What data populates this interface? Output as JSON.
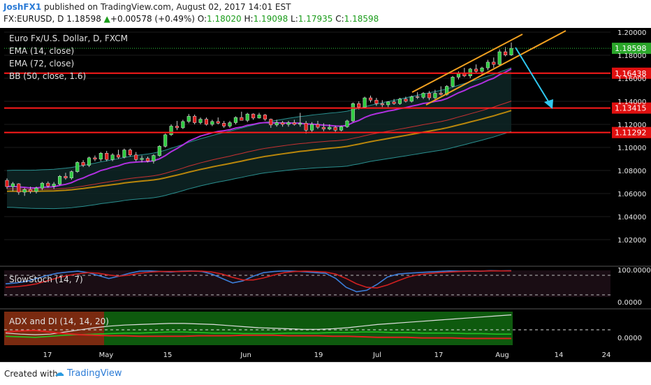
{
  "header": {
    "author": "JoshFX1",
    "published": "published on TradingView.com, August 02, 2017 14:01 EST",
    "symbol_line_prefix": "FX:EURUSD, D",
    "last_price": "1.18598",
    "change_arrow": "▲",
    "change": "+0.00578 (+0.49%)",
    "o_label": "O:",
    "o_value": "1.18020",
    "h_label": "H:",
    "h_value": "1.19098",
    "l_label": "L:",
    "l_value": "1.17935",
    "c_label": "C:",
    "c_value": "1.18598"
  },
  "footer": {
    "created_with": "Created with",
    "brand": "TradingView"
  },
  "colors": {
    "background": "#000000",
    "bull": "#2ecc40",
    "bear": "#e02020",
    "ema14": "#b030e0",
    "ema72": "#b8860b",
    "bb_basis": "#c83232",
    "bb_band": "#2a8f8f",
    "hline": "#ff1a1a",
    "channel": "#f0a020",
    "arrow": "#30c8f0",
    "stoch_k": "#3b7dd8",
    "stoch_d": "#d02020",
    "adx": "#dddddd",
    "di_plus": "#22c322",
    "di_minus": "#e02020"
  },
  "chart_data": {
    "type": "candlestick",
    "title": "Euro Fx/U.S. Dollar, D, FXCM",
    "legend": [
      "EMA (14, close)",
      "EMA (72, close)",
      "BB (50, close, 1.6)"
    ],
    "x_ticks": [
      "17",
      "May",
      "15",
      "Jun",
      "19",
      "Jul",
      "17",
      "Aug",
      "14",
      "24"
    ],
    "y_ticks": [
      "1.20000",
      "1.18000",
      "1.16000",
      "1.14000",
      "1.12000",
      "1.10000",
      "1.08000",
      "1.06000",
      "1.04000",
      "1.02000"
    ],
    "ylim": [
      1.0,
      1.2
    ],
    "horizontal_levels": [
      {
        "label": "1.16438",
        "value": 1.16438
      },
      {
        "label": "1.13415",
        "value": 1.13415
      },
      {
        "label": "1.11292",
        "value": 1.11292
      }
    ],
    "current_price": {
      "label": "1.18598",
      "value": 1.18598
    },
    "candles": [
      [
        1.0715,
        1.0732,
        1.064,
        1.066
      ],
      [
        1.066,
        1.07,
        1.062,
        1.0685
      ],
      [
        1.0685,
        1.069,
        1.059,
        1.0612
      ],
      [
        1.0612,
        1.065,
        1.058,
        1.0635
      ],
      [
        1.0635,
        1.066,
        1.06,
        1.0618
      ],
      [
        1.0618,
        1.066,
        1.06,
        1.0648
      ],
      [
        1.0648,
        1.07,
        1.063,
        1.069
      ],
      [
        1.069,
        1.0705,
        1.065,
        1.0665
      ],
      [
        1.0665,
        1.07,
        1.064,
        1.0682
      ],
      [
        1.0682,
        1.076,
        1.067,
        1.075
      ],
      [
        1.075,
        1.078,
        1.072,
        1.0735
      ],
      [
        1.0735,
        1.08,
        1.072,
        1.079
      ],
      [
        1.079,
        1.088,
        1.078,
        1.087
      ],
      [
        1.087,
        1.089,
        1.083,
        1.0845
      ],
      [
        1.0845,
        1.092,
        1.083,
        1.091
      ],
      [
        1.091,
        1.093,
        1.088,
        1.0898
      ],
      [
        1.0898,
        1.096,
        1.088,
        1.095
      ],
      [
        1.095,
        1.097,
        1.088,
        1.0895
      ],
      [
        1.0895,
        1.095,
        1.088,
        1.0935
      ],
      [
        1.0935,
        1.098,
        1.09,
        1.0915
      ],
      [
        1.0915,
        1.099,
        1.0905,
        1.0978
      ],
      [
        1.0978,
        1.099,
        1.092,
        1.0935
      ],
      [
        1.0935,
        1.096,
        1.088,
        1.0895
      ],
      [
        1.0895,
        1.093,
        1.087,
        1.0905
      ],
      [
        1.0905,
        1.092,
        1.087,
        1.0882
      ],
      [
        1.0882,
        1.094,
        1.086,
        1.093
      ],
      [
        1.093,
        1.102,
        1.092,
        1.101
      ],
      [
        1.101,
        1.112,
        1.1,
        1.111
      ],
      [
        1.111,
        1.12,
        1.11,
        1.1185
      ],
      [
        1.1185,
        1.123,
        1.115,
        1.117
      ],
      [
        1.117,
        1.124,
        1.116,
        1.1225
      ],
      [
        1.1225,
        1.129,
        1.121,
        1.127
      ],
      [
        1.127,
        1.1285,
        1.12,
        1.1215
      ],
      [
        1.1215,
        1.126,
        1.12,
        1.1245
      ],
      [
        1.1245,
        1.126,
        1.119,
        1.12
      ],
      [
        1.12,
        1.124,
        1.1185,
        1.1225
      ],
      [
        1.1225,
        1.126,
        1.12,
        1.121
      ],
      [
        1.121,
        1.123,
        1.117,
        1.1185
      ],
      [
        1.1185,
        1.123,
        1.117,
        1.1215
      ],
      [
        1.1215,
        1.127,
        1.12,
        1.126
      ],
      [
        1.126,
        1.131,
        1.124,
        1.1235
      ],
      [
        1.1235,
        1.13,
        1.122,
        1.129
      ],
      [
        1.129,
        1.1296,
        1.124,
        1.1255
      ],
      [
        1.1255,
        1.13,
        1.125,
        1.1282
      ],
      [
        1.1282,
        1.129,
        1.123,
        1.1245
      ],
      [
        1.1245,
        1.125,
        1.117,
        1.1195
      ],
      [
        1.1195,
        1.124,
        1.118,
        1.1215
      ],
      [
        1.1215,
        1.123,
        1.118,
        1.12
      ],
      [
        1.12,
        1.123,
        1.118,
        1.1215
      ],
      [
        1.1215,
        1.124,
        1.119,
        1.12
      ],
      [
        1.12,
        1.13,
        1.118,
        1.121
      ],
      [
        1.121,
        1.123,
        1.112,
        1.115
      ],
      [
        1.115,
        1.122,
        1.113,
        1.12
      ],
      [
        1.12,
        1.123,
        1.116,
        1.1175
      ],
      [
        1.1175,
        1.121,
        1.114,
        1.116
      ],
      [
        1.116,
        1.12,
        1.115,
        1.1175
      ],
      [
        1.1175,
        1.119,
        1.113,
        1.115
      ],
      [
        1.115,
        1.119,
        1.114,
        1.118
      ],
      [
        1.118,
        1.124,
        1.117,
        1.123
      ],
      [
        1.123,
        1.139,
        1.122,
        1.138
      ],
      [
        1.138,
        1.14,
        1.133,
        1.135
      ],
      [
        1.135,
        1.144,
        1.134,
        1.143
      ],
      [
        1.143,
        1.145,
        1.139,
        1.141
      ],
      [
        1.141,
        1.143,
        1.136,
        1.138
      ],
      [
        1.138,
        1.141,
        1.135,
        1.137
      ],
      [
        1.137,
        1.14,
        1.135,
        1.1395
      ],
      [
        1.1395,
        1.142,
        1.137,
        1.138
      ],
      [
        1.138,
        1.143,
        1.137,
        1.142
      ],
      [
        1.142,
        1.144,
        1.139,
        1.14
      ],
      [
        1.14,
        1.145,
        1.139,
        1.144
      ],
      [
        1.144,
        1.148,
        1.142,
        1.1435
      ],
      [
        1.1435,
        1.148,
        1.142,
        1.147
      ],
      [
        1.147,
        1.149,
        1.141,
        1.143
      ],
      [
        1.143,
        1.15,
        1.142,
        1.147
      ],
      [
        1.147,
        1.153,
        1.145,
        1.146
      ],
      [
        1.146,
        1.154,
        1.145,
        1.153
      ],
      [
        1.153,
        1.162,
        1.152,
        1.161
      ],
      [
        1.161,
        1.166,
        1.159,
        1.164
      ],
      [
        1.164,
        1.169,
        1.161,
        1.162
      ],
      [
        1.162,
        1.169,
        1.16,
        1.168
      ],
      [
        1.168,
        1.172,
        1.164,
        1.166
      ],
      [
        1.166,
        1.17,
        1.163,
        1.169
      ],
      [
        1.169,
        1.176,
        1.167,
        1.174
      ],
      [
        1.174,
        1.178,
        1.169,
        1.172
      ],
      [
        1.172,
        1.185,
        1.171,
        1.183
      ],
      [
        1.183,
        1.187,
        1.179,
        1.1802
      ],
      [
        1.1802,
        1.191,
        1.1794,
        1.18598
      ]
    ],
    "ema14_end": 1.168,
    "ema72_end": 1.131,
    "bb_upper_end": 1.178,
    "bb_basis_end": 1.138,
    "bb_lower_end": 1.106,
    "stochastic": {
      "label": "SlowStoch (14, 7)",
      "y_ticks": [
        "100.0000",
        "0.0000"
      ],
      "ylim": [
        0,
        100
      ],
      "k": [
        52,
        55,
        60,
        70,
        80,
        88,
        92,
        95,
        90,
        80,
        70,
        78,
        88,
        95,
        96,
        94,
        92,
        95,
        96,
        94,
        85,
        70,
        55,
        62,
        78,
        90,
        94,
        96,
        95,
        93,
        90,
        88,
        70,
        40,
        25,
        30,
        50,
        75,
        85,
        88,
        90,
        92,
        94,
        96,
        95,
        96,
        95,
        97,
        96,
        97
      ],
      "d": [
        40,
        42,
        46,
        52,
        62,
        72,
        80,
        86,
        90,
        88,
        82,
        78,
        82,
        88,
        92,
        94,
        94,
        94,
        95,
        95,
        92,
        85,
        74,
        65,
        65,
        72,
        82,
        90,
        94,
        95,
        94,
        92,
        85,
        70,
        52,
        40,
        38,
        48,
        62,
        75,
        83,
        87,
        90,
        92,
        94,
        95,
        95,
        96,
        96,
        96
      ]
    },
    "adx_di": {
      "label": "ADX and DI (14, 14, 20)",
      "y_ticks": [
        "0.0000"
      ],
      "threshold": 20,
      "ylim": [
        0,
        60
      ],
      "adx": [
        20,
        18,
        17,
        18,
        22,
        26,
        30,
        33,
        35,
        36,
        37,
        38,
        38,
        37,
        36,
        34,
        32,
        30,
        29,
        28,
        27,
        27,
        28,
        30,
        33,
        36,
        38,
        40,
        42,
        44,
        46,
        48,
        50,
        52,
        54
      ],
      "di_plus": [
        14,
        13,
        12,
        14,
        16,
        17,
        18,
        19,
        20,
        20,
        21,
        22,
        22,
        21,
        20,
        20,
        19,
        19,
        19,
        20,
        20,
        20,
        21,
        21,
        22,
        22,
        21,
        21,
        20,
        20,
        20,
        19,
        19,
        18,
        18
      ],
      "di_minus": [
        22,
        24,
        25,
        22,
        19,
        17,
        16,
        15,
        15,
        14,
        14,
        14,
        14,
        15,
        15,
        15,
        16,
        16,
        16,
        15,
        15,
        15,
        14,
        14,
        13,
        12,
        12,
        12,
        11,
        11,
        11,
        10,
        10,
        10,
        10
      ]
    }
  }
}
